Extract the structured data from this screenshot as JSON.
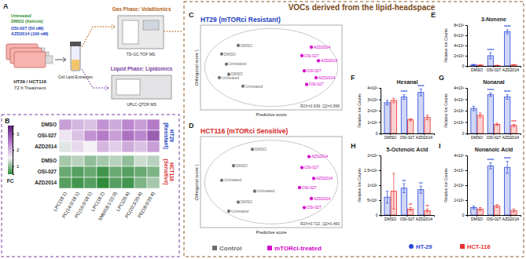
{
  "figure": {
    "header": "VOCs derived from the lipid-headspace",
    "panel_labels": [
      "A",
      "B",
      "C",
      "D",
      "E",
      "F",
      "G",
      "H",
      "I"
    ],
    "schematic": {
      "treatments": [
        "Untreated",
        "DMSO (Vehicle)",
        "OSI-027 (50 nM)",
        "AZD2014 (100 nM)"
      ],
      "cells": "HT29 / HCT116",
      "duration": "72 h Treatment",
      "extraction": "Cell Lipid Extraction",
      "gas_phase": "Gas Phase: Volatilomics",
      "gas_instrument": "TD-GC-TOF MS",
      "liquid_phase": "Liquid Phase: Lipidomics",
      "liquid_instrument": "UPLC-QTOF MS"
    }
  },
  "chart_data": [
    {
      "type": "heatmap",
      "title": "HT29 (Resistant)",
      "rows": [
        "DMSO",
        "OSI-027",
        "AZD2014"
      ],
      "cells": [
        [
          2.2,
          2.0,
          1.9,
          2.3,
          2.1,
          2.4,
          2.2,
          2.5
        ],
        [
          1.6,
          1.9,
          2.3,
          2.5,
          2.2,
          2.6,
          2.4,
          2.8
        ],
        [
          1.4,
          1.7,
          1.5,
          2.0,
          1.8,
          2.1,
          1.9,
          2.2
        ]
      ],
      "colorbar": {
        "range": [
          0.5,
          3.5
        ],
        "ticks": [
          1,
          2,
          3
        ],
        "label": "FC",
        "colors": [
          "#2e8b3a",
          "#f4f0f6",
          "#b57bc9",
          "#5c1a7a"
        ]
      }
    },
    {
      "type": "heatmap",
      "title": "HCT116 (Sensitive)",
      "rows": [
        "DMSO",
        "OSI-027",
        "AZD2014"
      ],
      "columns": [
        "LPC(18:1)",
        "PC(14:0/18:1)",
        "PC(16:0/18:1)",
        "LPC(18:2)",
        "SM(d18:1/22:0)",
        "LPC(20:4)",
        "PC(20:3/20:4)",
        "PE(18:0/20:4)"
      ],
      "cells": [
        [
          1.1,
          1.2,
          1.0,
          1.1,
          1.2,
          1.0,
          1.3,
          1.2
        ],
        [
          0.8,
          0.7,
          0.8,
          0.6,
          0.8,
          0.7,
          0.8,
          0.9
        ],
        [
          0.7,
          0.6,
          0.7,
          0.5,
          0.7,
          0.6,
          0.9,
          1.1
        ]
      ]
    },
    {
      "type": "scatter",
      "title": "HT29 (mTORci Resistant)",
      "xlabel": "Predictive score",
      "ylabel": "Orthogonal score 1",
      "annotation": "R2X=0.939, Q2=0.896",
      "xlim": [
        -3,
        3
      ],
      "ylim": [
        -2.5,
        2.5
      ],
      "tick_labels": false,
      "series": [
        {
          "color": "#6e6e6e",
          "x": [
            -1.4,
            -2.1,
            -1.9,
            -1.8,
            -2.2,
            -1.2
          ],
          "values": [
            1.3,
            0.8,
            0.2,
            -0.4,
            -0.6,
            -1.1
          ],
          "labels": [
            "DMSO",
            "DMSO",
            "Untreated",
            "DMSO",
            "Untreated",
            "Untreated"
          ]
        },
        {
          "color": "#d400c8",
          "x": [
            1.7,
            1.3,
            2.0,
            1.4,
            1.9,
            1.5
          ],
          "values": [
            1.2,
            0.7,
            0.4,
            -0.2,
            -0.6,
            -1.0
          ],
          "labels": [
            "AZD2014",
            "OSI-027",
            "AZD2014",
            "OSI-027",
            "AZD2014",
            "OSI-027"
          ]
        }
      ]
    },
    {
      "type": "scatter",
      "title": "HCT116 (mTORci Sensitive)",
      "xlabel": "Predictive score",
      "ylabel": "Orthogonal score 1",
      "annotation": "R2X=0.722, Q2=0.460",
      "xlim": [
        -3,
        3
      ],
      "ylim": [
        -2.5,
        2.5
      ],
      "tick_labels": false,
      "series": [
        {
          "name": "Control",
          "color": "#6e6e6e",
          "x": [
            -0.8,
            -1.6,
            -2.1,
            -0.7,
            -1.4,
            -1.8
          ],
          "values": [
            1.8,
            0.9,
            0.1,
            -0.5,
            -1.1,
            -1.6
          ],
          "labels": [
            "DMSO",
            "DMSO",
            "Untreated",
            "Untreated",
            "DMSO",
            "Untreated"
          ]
        },
        {
          "name": "mTORci-treated",
          "color": "#d400c8",
          "x": [
            1.6,
            1.3,
            1.8,
            1.2,
            1.7,
            1.4
          ],
          "values": [
            1.4,
            0.8,
            0.2,
            -0.3,
            -0.9,
            -1.4
          ],
          "labels": [
            "AZD2014",
            "OSI-027",
            "AZD2014",
            "OSI-027",
            "AZD2014",
            "OSI-027"
          ]
        }
      ]
    },
    {
      "type": "bar",
      "title": "3-Nonene",
      "ylabel": "Relative Ion Counts",
      "categories": [
        "DMSO",
        "OSI-027",
        "AZD2014"
      ],
      "ylim": [
        0,
        8000000
      ],
      "yticks": [
        0,
        {
          "value": 2000000,
          "label": "2×10⁶"
        },
        {
          "value": 4000000,
          "label": "4×10⁶"
        },
        {
          "value": 6000000,
          "label": "6×10⁶"
        },
        {
          "value": 8000000,
          "label": "8×10⁶"
        }
      ],
      "series": [
        {
          "color": "#2846d8",
          "values": [
            200000,
            2000000,
            6700000
          ],
          "errors": [
            100000,
            600000,
            400000
          ],
          "significance": [
            null,
            "****",
            "****"
          ]
        },
        {
          "color": "#e8312f",
          "values": [
            150000,
            100000,
            200000
          ],
          "errors": [
            50000,
            50000,
            80000
          ]
        }
      ]
    },
    {
      "type": "bar",
      "title": "Hexanal",
      "ylabel": "Relative Ion Counts",
      "categories": [
        "DMSO",
        "OSI-027",
        "AZD2014"
      ],
      "ylim": [
        0,
        4000000
      ],
      "yticks": [
        0,
        {
          "value": 1000000,
          "label": "1×10⁶"
        },
        {
          "value": 2000000,
          "label": "2×10⁶"
        },
        {
          "value": 3000000,
          "label": "3×10⁶"
        },
        {
          "value": 4000000,
          "label": "4×10⁶"
        }
      ],
      "series": [
        {
          "color": "#2846d8",
          "values": [
            2700000,
            3200000,
            3600000
          ],
          "errors": [
            200000,
            200000,
            300000
          ],
          "significance": [
            null,
            "****",
            "****"
          ]
        },
        {
          "color": "#e8312f",
          "values": [
            2900000,
            1200000,
            1400000
          ],
          "errors": [
            200000,
            100000,
            200000
          ]
        }
      ]
    },
    {
      "type": "bar",
      "title": "Nonanal",
      "ylabel": "Relative Ion Counts",
      "categories": [
        "DMSO",
        "OSI-027",
        "AZD2014"
      ],
      "ylim": [
        0,
        400000
      ],
      "yticks": [
        0,
        {
          "value": 100000,
          "label": "1×10⁵"
        },
        {
          "value": 200000,
          "label": "2×10⁵"
        },
        {
          "value": 300000,
          "label": "3×10⁵"
        },
        {
          "value": 400000,
          "label": "4×10⁵"
        }
      ],
      "series": [
        {
          "color": "#2846d8",
          "values": [
            220000,
            340000,
            320000
          ],
          "errors": [
            20000,
            15000,
            20000
          ],
          "significance": [
            null,
            "****",
            "****"
          ]
        },
        {
          "color": "#e8312f",
          "values": [
            160000,
            80000,
            70000
          ],
          "errors": [
            20000,
            10000,
            10000
          ],
          "significance": [
            null,
            null,
            "***"
          ]
        }
      ]
    },
    {
      "type": "bar",
      "title": "5-Octenoic Acid",
      "ylabel": "Relative Ion Counts",
      "categories": [
        "DMSO",
        "OSI-027",
        "AZD2014"
      ],
      "ylim": [
        0,
        200000
      ],
      "yticks": [
        0,
        {
          "value": 50000,
          "label": "5×10⁴"
        },
        {
          "value": 100000,
          "label": "1×10⁵"
        },
        {
          "value": 150000,
          "label": "1.5×10⁵"
        },
        {
          "value": 200000,
          "label": "2×10⁵"
        }
      ],
      "series": [
        {
          "color": "#2846d8",
          "values": [
            60000,
            90000,
            85000
          ],
          "errors": [
            20000,
            15000,
            12000
          ],
          "significance": [
            null,
            "**",
            "**"
          ]
        },
        {
          "color": "#e8312f",
          "values": [
            80000,
            20000,
            15000
          ],
          "errors": [
            60000,
            5000,
            5000
          ],
          "significance": [
            null,
            "**",
            "**"
          ]
        }
      ]
    },
    {
      "type": "bar",
      "title": "Nonanoic Acid",
      "ylabel": "Relative Ion Counts",
      "categories": [
        "DMSO",
        "OSI-027",
        "AZD2014"
      ],
      "ylim": [
        0,
        400000
      ],
      "yticks": [
        0,
        {
          "value": 100000,
          "label": "1×10⁵"
        },
        {
          "value": 200000,
          "label": "2×10⁵"
        },
        {
          "value": 300000,
          "label": "3×10⁵"
        },
        {
          "value": 400000,
          "label": "4×10⁵"
        }
      ],
      "series": [
        {
          "name": "HT-29",
          "color": "#2846d8",
          "marker": "circle",
          "values": [
            50000,
            330000,
            320000
          ],
          "errors": [
            10000,
            20000,
            40000
          ],
          "significance": [
            null,
            "****",
            "****"
          ]
        },
        {
          "name": "HCT-116",
          "color": "#e8312f",
          "marker": "square",
          "values": [
            40000,
            60000,
            30000
          ],
          "errors": [
            10000,
            10000,
            10000
          ]
        }
      ]
    }
  ]
}
